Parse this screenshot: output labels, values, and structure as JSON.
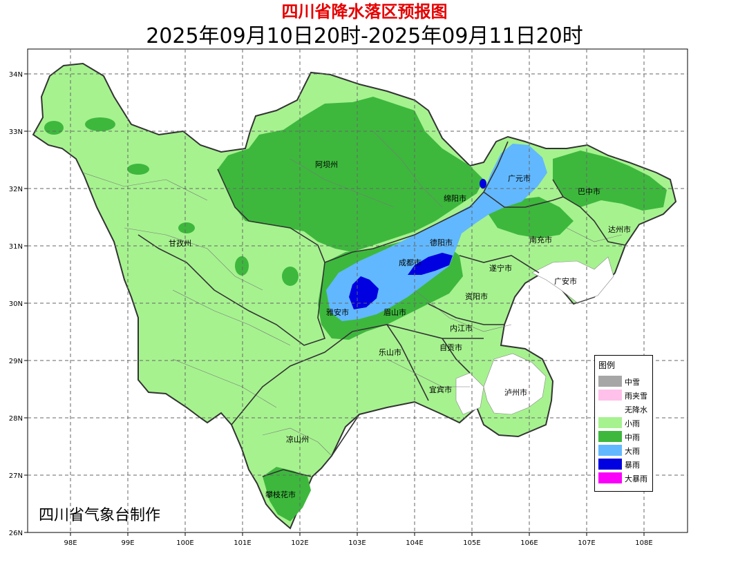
{
  "header": {
    "title": "四川省降水落区预报图",
    "subtitle": "2025年09月10日20时-2025年09月11日20时"
  },
  "axes": {
    "lat_labels": [
      "34N",
      "33N",
      "32N",
      "31N",
      "30N",
      "29N",
      "28N",
      "27N",
      "26N"
    ],
    "lon_labels": [
      "98E",
      "99E",
      "100E",
      "101E",
      "102E",
      "103E",
      "104E",
      "105E",
      "106E",
      "107E",
      "108E"
    ]
  },
  "cities": {
    "aba": "阿坝州",
    "guangyuan": "广元市",
    "mianyang": "绵阳市",
    "bazhong": "巴中市",
    "dazhou": "达州市",
    "nanchong": "南充市",
    "deyang": "德阳市",
    "ganzi": "甘孜州",
    "chengdu": "成都市",
    "suining": "遂宁市",
    "guangan": "广安市",
    "ziyang": "资阳市",
    "yaan": "雅安市",
    "meishan": "眉山市",
    "neijiang": "内江市",
    "zigong": "自贡市",
    "leshan": "乐山市",
    "yibin": "宜宾市",
    "luzhou": "泸州市",
    "liangshan": "凉山州",
    "panzhihua": "攀枝花市"
  },
  "credit": "四川省气象台制作",
  "legend": {
    "title": "图例",
    "items": [
      {
        "label": "中雪",
        "color": "#a6a6a6"
      },
      {
        "label": "雨夹雪",
        "color": "#ffc0ea"
      },
      {
        "label": "无降水",
        "color": "#ffffff"
      },
      {
        "label": "小雨",
        "color": "#a6f28f"
      },
      {
        "label": "中雨",
        "color": "#3db83d"
      },
      {
        "label": "大雨",
        "color": "#61b8ff"
      },
      {
        "label": "暴雨",
        "color": "#0000e1"
      },
      {
        "label": "大暴雨",
        "color": "#fa00fa"
      }
    ]
  }
}
